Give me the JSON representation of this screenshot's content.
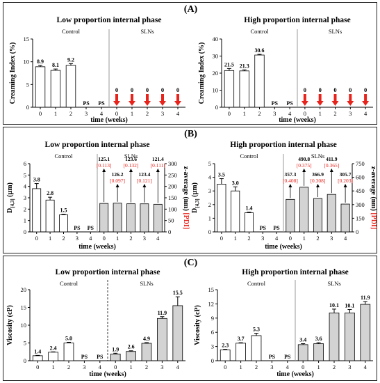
{
  "panels": [
    {
      "label": "(A)"
    },
    {
      "label": "(B)"
    },
    {
      "label": "(C)"
    }
  ],
  "colors": {
    "control_bar": "#ffffff",
    "sln_bar": "#d3d3d3",
    "arrow": "#e8231c",
    "pdi": "#e8231c"
  },
  "chart_data": [
    {
      "id": "A-low",
      "type": "bar",
      "title": "Low proportion internal phase",
      "xlabel": "time (weeks)",
      "ylabel": "Creaming Index (%)",
      "ylim": [
        0,
        15
      ],
      "yticks": [
        0,
        5,
        10,
        15
      ],
      "groups": [
        {
          "name": "Control",
          "categories": [
            "0",
            "1",
            "2",
            "3",
            "4"
          ],
          "values": [
            8.9,
            8.1,
            9.2,
            null,
            null
          ],
          "labels": [
            "8.9",
            "8.1",
            "9.2",
            "PS",
            "PS"
          ],
          "errors": [
            0.3,
            0.3,
            0.4,
            0,
            0
          ]
        },
        {
          "name": "SLNs",
          "categories": [
            "0",
            "1",
            "2",
            "3",
            "4"
          ],
          "values": [
            0,
            0,
            0,
            0,
            0
          ],
          "labels": [
            "0",
            "0",
            "0",
            "0",
            "0"
          ],
          "arrows": true
        }
      ],
      "separator": "solid"
    },
    {
      "id": "A-high",
      "type": "bar",
      "title": "High proportion internal phase",
      "xlabel": "time (weeks)",
      "ylabel": "Creaming Index (%)",
      "ylim": [
        0,
        40
      ],
      "yticks": [
        0,
        10,
        20,
        30,
        40
      ],
      "groups": [
        {
          "name": "Control",
          "categories": [
            "0",
            "1",
            "2",
            "3",
            "4"
          ],
          "values": [
            21.5,
            21.3,
            30.6,
            null,
            null
          ],
          "labels": [
            "21.5",
            "21.3",
            "30.6",
            "PS",
            "PS"
          ],
          "errors": [
            1.2,
            0.6,
            0.4,
            0,
            0
          ]
        },
        {
          "name": "SLNs",
          "categories": [
            "0",
            "1",
            "2",
            "3",
            "4"
          ],
          "values": [
            0,
            0,
            0,
            0,
            0
          ],
          "labels": [
            "0",
            "0",
            "0",
            "0",
            "0"
          ],
          "arrows": true
        }
      ],
      "separator": "solid"
    },
    {
      "id": "B-low",
      "type": "bar",
      "title": "Low proportion internal phase",
      "xlabel": "time (weeks)",
      "ylabel": "D[4,3] (µm)",
      "ylabel_main": "D",
      "ylabel_sub": "[4,3]",
      "ylabel_unit": " (µm)",
      "ylim": [
        0,
        6
      ],
      "yticks": [
        0,
        1,
        2,
        3,
        4,
        5,
        6
      ],
      "y2label": "z-average (nm) ",
      "y2label_pdi": "[PDI]",
      "y2lim": [
        0,
        300
      ],
      "y2ticks": [
        0,
        50,
        100,
        150,
        200,
        250,
        300
      ],
      "groups": [
        {
          "name": "Control",
          "categories": [
            "0",
            "1",
            "2",
            "3",
            "4"
          ],
          "values": [
            3.8,
            2.8,
            1.5,
            null,
            null
          ],
          "labels": [
            "3.8",
            "2.8",
            "1.5",
            "PS",
            "PS"
          ],
          "errors": [
            0.45,
            0.25,
            0.05,
            0,
            0
          ]
        },
        {
          "name": "SLNs",
          "categories": [
            "0",
            "1",
            "2",
            "3",
            "4"
          ],
          "values": [
            125.1,
            126.2,
            123.6,
            123.4,
            121.4
          ],
          "axis": "right",
          "labels": [
            "125.1",
            "126.2",
            "123.6",
            "123.4",
            "121.4"
          ],
          "pdi": [
            "[0.113]",
            "[0.097]",
            "[0.132]",
            "[0.121]",
            "[0.111]"
          ],
          "label_offsets": [
            1,
            0,
            1,
            0,
            1
          ]
        }
      ],
      "separator": "solid"
    },
    {
      "id": "B-high",
      "type": "bar",
      "title": "High proportion internal phase",
      "xlabel": "time (weeks)",
      "ylabel_main": "D",
      "ylabel_sub": "[4,3]",
      "ylabel_unit": " (µm)",
      "ylim": [
        0,
        5
      ],
      "yticks": [
        0,
        1,
        2,
        3,
        4,
        5
      ],
      "y2label": "z-average (nm) ",
      "y2label_pdi": "[PDI]",
      "y2lim": [
        0,
        750
      ],
      "y2ticks": [
        0,
        150,
        300,
        450,
        600,
        750
      ],
      "groups": [
        {
          "name": "Control",
          "categories": [
            "0",
            "1",
            "2",
            "3",
            "4"
          ],
          "values": [
            3.5,
            3.0,
            1.4,
            null,
            null
          ],
          "labels": [
            "3.5",
            "3.0",
            "1.4",
            "PS",
            "PS"
          ],
          "errors": [
            0.4,
            0.3,
            0.05,
            0,
            0
          ]
        },
        {
          "name": "SLNs",
          "categories": [
            "0",
            "1",
            "2",
            "3",
            "4"
          ],
          "values": [
            357.3,
            490.8,
            366.9,
            411.9,
            305.7
          ],
          "axis": "right",
          "labels": [
            "357.3",
            "490.8",
            "366.9",
            "411.9",
            "305.7"
          ],
          "pdi": [
            "[0.408]",
            "[0.375]",
            "[0.308]",
            "[0.365]",
            "[0.203]"
          ],
          "label_offsets": [
            0,
            1,
            0,
            1,
            0
          ]
        }
      ],
      "separator": "solid"
    },
    {
      "id": "C-low",
      "type": "bar",
      "title": "Low proportion internal phase",
      "xlabel": "time (weeks)",
      "ylabel": "Viscosity (cP)",
      "ylim": [
        0,
        20
      ],
      "yticks": [
        0,
        5,
        10,
        15,
        20
      ],
      "groups": [
        {
          "name": "Control",
          "categories": [
            "0",
            "1",
            "2",
            "3",
            "4"
          ],
          "values": [
            1.4,
            2.4,
            5.0,
            null,
            null
          ],
          "labels": [
            "1.4",
            "2.4",
            "5.0",
            "PS",
            "PS"
          ],
          "errors": [
            0.1,
            0.1,
            0.2,
            0,
            0
          ]
        },
        {
          "name": "SLNs",
          "categories": [
            "0",
            "1",
            "2",
            "3",
            "4"
          ],
          "values": [
            1.9,
            2.6,
            4.9,
            11.9,
            15.5
          ],
          "labels": [
            "1.9",
            "2.6",
            "4.9",
            "11.9",
            "15.5"
          ],
          "errors": [
            0.2,
            0.2,
            0.2,
            0.5,
            2.5
          ]
        }
      ],
      "separator": "dashed"
    },
    {
      "id": "C-high",
      "type": "bar",
      "title": "High proportion internal phase",
      "xlabel": "time (weeks)",
      "ylabel": "Viscosity (cP)",
      "ylim": [
        0,
        15
      ],
      "yticks": [
        0,
        3,
        6,
        9,
        12,
        15
      ],
      "groups": [
        {
          "name": "Control",
          "categories": [
            "0",
            "1",
            "2",
            "3",
            "4"
          ],
          "values": [
            2.3,
            3.7,
            5.3,
            null,
            null
          ],
          "labels": [
            "2.3",
            "3.7",
            "5.3",
            "PS",
            "PS"
          ],
          "errors": [
            0.1,
            0.1,
            0.5,
            0,
            0
          ]
        },
        {
          "name": "SLNs",
          "categories": [
            "0",
            "1",
            "2",
            "3",
            "4"
          ],
          "values": [
            3.4,
            3.6,
            10.1,
            10.1,
            11.9
          ],
          "labels": [
            "3.4",
            "3.6",
            "10.1",
            "10.1",
            "11.9"
          ],
          "errors": [
            0.2,
            0.2,
            0.8,
            0.7,
            0.6
          ]
        }
      ],
      "separator": "solid"
    }
  ]
}
